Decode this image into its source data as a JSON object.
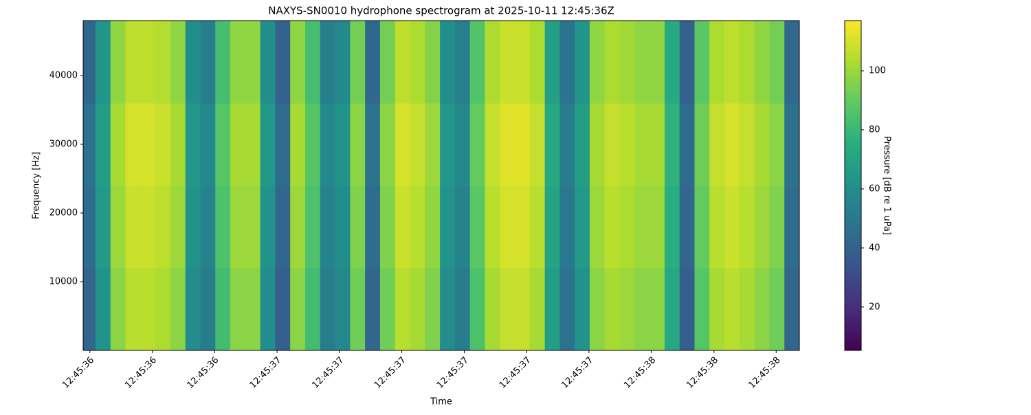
{
  "chart_data": {
    "type": "heatmap",
    "title": "NAXYS-SN0010 hydrophone spectrogram at 2025-10-11 12:45:36Z",
    "x_label": "Time",
    "y_label": "Frequency [Hz]",
    "colorbar_label": "Pressure [dB re 1 uPa]",
    "colormap": "viridis",
    "x": [
      36.495,
      36.535,
      36.575,
      36.615,
      36.655,
      36.695,
      36.735,
      36.775,
      36.815,
      36.855,
      36.895,
      36.935,
      36.975,
      37.015,
      37.055,
      37.095,
      37.135,
      37.175,
      37.215,
      37.255,
      37.295,
      37.335,
      37.375,
      37.415,
      37.455,
      37.495,
      37.535,
      37.575,
      37.615,
      37.655,
      37.695,
      37.735,
      37.775,
      37.815,
      37.855,
      37.895,
      37.935,
      37.975,
      38.015,
      38.055,
      38.095,
      38.135,
      38.175,
      38.215,
      38.255,
      38.295,
      38.335,
      38.375
    ],
    "y": [
      6000,
      18000,
      30000,
      42000
    ],
    "z": [
      [
        42,
        62,
        97,
        105,
        105,
        103,
        97,
        59,
        52,
        82,
        97,
        97,
        59,
        39,
        97,
        82,
        52,
        57,
        92,
        42,
        92,
        105,
        102,
        95,
        59,
        52,
        85,
        102,
        107,
        107,
        102,
        67,
        47,
        62,
        97,
        102,
        100,
        97,
        97,
        72,
        39,
        87,
        102,
        105,
        102,
        97,
        92,
        42
      ],
      [
        45,
        65,
        100,
        108,
        108,
        106,
        100,
        62,
        55,
        85,
        100,
        100,
        62,
        42,
        100,
        85,
        55,
        60,
        95,
        45,
        95,
        108,
        105,
        98,
        62,
        55,
        88,
        105,
        110,
        110,
        105,
        70,
        50,
        65,
        100,
        105,
        103,
        100,
        100,
        75,
        42,
        90,
        105,
        108,
        105,
        100,
        95,
        45
      ],
      [
        47,
        67,
        102,
        110,
        110,
        108,
        102,
        64,
        57,
        87,
        102,
        102,
        64,
        44,
        102,
        87,
        57,
        62,
        97,
        47,
        97,
        110,
        107,
        100,
        64,
        57,
        90,
        107,
        112,
        112,
        107,
        72,
        52,
        67,
        102,
        107,
        105,
        102,
        102,
        77,
        44,
        92,
        107,
        110,
        107,
        102,
        97,
        47
      ],
      [
        43,
        63,
        98,
        106,
        106,
        104,
        98,
        60,
        53,
        83,
        98,
        98,
        60,
        40,
        98,
        83,
        53,
        58,
        93,
        43,
        93,
        106,
        103,
        96,
        60,
        53,
        86,
        103,
        108,
        108,
        103,
        68,
        48,
        63,
        98,
        103,
        101,
        98,
        98,
        73,
        40,
        88,
        103,
        106,
        103,
        98,
        93,
        43
      ]
    ],
    "xlim": [
      36.482,
      38.395
    ],
    "ylim": [
      0,
      48000
    ],
    "clim": [
      5.3,
      117
    ],
    "xticks": [
      {
        "value": 36.5,
        "label": "12:45:36"
      },
      {
        "value": 36.667,
        "label": "12:45:36"
      },
      {
        "value": 36.833,
        "label": "12:45:36"
      },
      {
        "value": 37.0,
        "label": "12:45:37"
      },
      {
        "value": 37.167,
        "label": "12:45:37"
      },
      {
        "value": 37.333,
        "label": "12:45:37"
      },
      {
        "value": 37.5,
        "label": "12:45:37"
      },
      {
        "value": 37.667,
        "label": "12:45:37"
      },
      {
        "value": 37.833,
        "label": "12:45:37"
      },
      {
        "value": 38.0,
        "label": "12:45:38"
      },
      {
        "value": 38.167,
        "label": "12:45:38"
      },
      {
        "value": 38.333,
        "label": "12:45:38"
      }
    ],
    "yticks": [
      10000,
      20000,
      30000,
      40000
    ],
    "cticks": [
      20,
      40,
      60,
      80,
      100
    ]
  }
}
